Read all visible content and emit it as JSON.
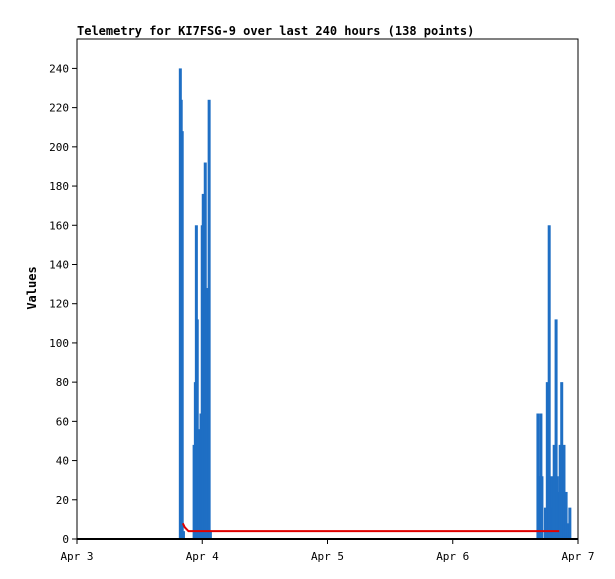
{
  "chart_data": {
    "type": "bar",
    "title": "Telemetry for KI7FSG-9 over last 240 hours (138 points)",
    "xlabel": "",
    "ylabel": "Values",
    "xlim_days": [
      3.0,
      7.0
    ],
    "ylim": [
      0,
      255
    ],
    "x_ticks": [
      {
        "value": 3,
        "label": "Apr 3"
      },
      {
        "value": 4,
        "label": "Apr 4"
      },
      {
        "value": 5,
        "label": "Apr 5"
      },
      {
        "value": 6,
        "label": "Apr 6"
      },
      {
        "value": 7,
        "label": "Apr 7"
      }
    ],
    "y_ticks": [
      0,
      20,
      40,
      60,
      80,
      100,
      120,
      140,
      160,
      180,
      200,
      220,
      240
    ],
    "grid": false,
    "series": [
      {
        "color": "#1f6fc4",
        "style": "bars",
        "points": [
          [
            3.825,
            240
          ],
          [
            3.832,
            224
          ],
          [
            3.84,
            208
          ],
          [
            3.85,
            4
          ],
          [
            3.935,
            48
          ],
          [
            3.945,
            80
          ],
          [
            3.953,
            160
          ],
          [
            3.96,
            112
          ],
          [
            3.968,
            56
          ],
          [
            3.975,
            32
          ],
          [
            3.99,
            64
          ],
          [
            4.0,
            160
          ],
          [
            4.008,
            176
          ],
          [
            4.016,
            88
          ],
          [
            4.024,
            192
          ],
          [
            4.032,
            64
          ],
          [
            4.04,
            128
          ],
          [
            4.055,
            224
          ],
          [
            4.065,
            4
          ],
          [
            6.68,
            64
          ],
          [
            6.688,
            32
          ],
          [
            6.696,
            32
          ],
          [
            6.704,
            64
          ],
          [
            6.712,
            32
          ],
          [
            6.74,
            16
          ],
          [
            6.755,
            80
          ],
          [
            6.77,
            160
          ],
          [
            6.79,
            32
          ],
          [
            6.8,
            16
          ],
          [
            6.81,
            48
          ],
          [
            6.825,
            112
          ],
          [
            6.835,
            32
          ],
          [
            6.845,
            24
          ],
          [
            6.858,
            48
          ],
          [
            6.87,
            80
          ],
          [
            6.888,
            48
          ],
          [
            6.905,
            24
          ],
          [
            6.92,
            8
          ],
          [
            6.935,
            16
          ]
        ]
      },
      {
        "color": "#e00000",
        "style": "line",
        "points": [
          [
            3.845,
            8
          ],
          [
            3.86,
            6
          ],
          [
            3.875,
            5
          ],
          [
            3.89,
            4
          ],
          [
            4.1,
            4
          ],
          [
            5.0,
            4
          ],
          [
            6.0,
            4
          ],
          [
            6.7,
            4
          ],
          [
            6.85,
            4
          ]
        ]
      },
      {
        "color": "#000000",
        "style": "line",
        "points": [
          [
            3.0,
            0
          ],
          [
            7.0,
            0
          ]
        ]
      }
    ]
  }
}
